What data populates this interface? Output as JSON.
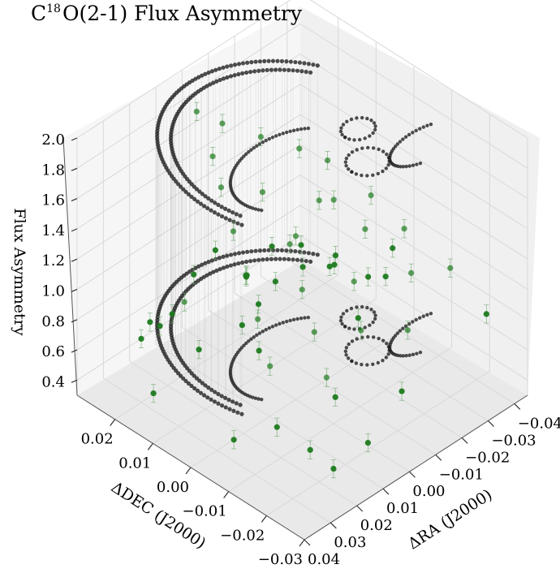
{
  "chart_data": {
    "type": "scatter",
    "projection": "3d",
    "title": {
      "prefix": "C",
      "superscript": "18",
      "suffix": "O(2-1) Flux Asymmetry"
    },
    "xlabel": "ΔRA (J2000)",
    "ylabel": "ΔDEC (J2000)",
    "zlabel": "Flux Asymmetry",
    "xlim": [
      -0.045,
      0.04
    ],
    "ylim": [
      -0.03,
      0.03
    ],
    "zlim": [
      0.3,
      2.0
    ],
    "x_ticks": [
      -0.04,
      -0.03,
      -0.02,
      -0.01,
      0.0,
      0.01,
      0.02,
      0.03,
      0.04
    ],
    "x_tick_labels": [
      "−0.04",
      "−0.03",
      "−0.02",
      "−0.01",
      "0.00",
      "0.01",
      "0.02",
      "0.03",
      "0.04"
    ],
    "y_ticks": [
      0.02,
      0.01,
      0.0,
      -0.01,
      -0.02,
      -0.03
    ],
    "y_tick_labels": [
      "0.02",
      "0.01",
      "0.00",
      "−0.01",
      "−0.02",
      "−0.03"
    ],
    "z_ticks": [
      0.4,
      0.6,
      0.8,
      1.0,
      1.2,
      1.4,
      1.6,
      1.8,
      2.0
    ],
    "z_tick_labels": [
      "0.4",
      "0.6",
      "0.8",
      "1.0",
      "1.2",
      "1.4",
      "1.6",
      "1.8",
      "2.0"
    ],
    "grid": true,
    "colors": {
      "points": "#1e7a1e",
      "contours": "#222222",
      "errorbars": "#6aa56a"
    },
    "contour_levels_z": [
      0.7,
      1.95
    ],
    "points": [
      {
        "x": 0.006,
        "y": 0.022,
        "z": 1.92
      },
      {
        "x": 0.002,
        "y": 0.018,
        "z": 1.86
      },
      {
        "x": -0.004,
        "y": 0.012,
        "z": 1.8
      },
      {
        "x": 0.01,
        "y": 0.015,
        "z": 1.78
      },
      {
        "x": -0.01,
        "y": 0.006,
        "z": 1.75
      },
      {
        "x": 0.014,
        "y": 0.01,
        "z": 1.7
      },
      {
        "x": -0.015,
        "y": 0.002,
        "z": 1.68
      },
      {
        "x": 0.004,
        "y": 0.006,
        "z": 1.62
      },
      {
        "x": -0.006,
        "y": -0.002,
        "z": 1.58
      },
      {
        "x": 0.018,
        "y": 0.004,
        "z": 1.55
      },
      {
        "x": -0.02,
        "y": -0.006,
        "z": 1.52
      },
      {
        "x": 0.008,
        "y": -0.004,
        "z": 1.48
      },
      {
        "x": -0.012,
        "y": -0.01,
        "z": 1.45
      },
      {
        "x": 0.022,
        "y": -0.002,
        "z": 1.4
      },
      {
        "x": 0.0,
        "y": 0.0,
        "z": 1.38
      },
      {
        "x": -0.024,
        "y": -0.012,
        "z": 1.35
      },
      {
        "x": 0.012,
        "y": -0.01,
        "z": 1.32
      },
      {
        "x": -0.002,
        "y": -0.014,
        "z": 1.28
      },
      {
        "x": 0.026,
        "y": -0.008,
        "z": 1.25
      },
      {
        "x": -0.018,
        "y": -0.018,
        "z": 1.22
      },
      {
        "x": 0.016,
        "y": -0.016,
        "z": 1.18
      },
      {
        "x": -0.03,
        "y": -0.02,
        "z": 1.15
      },
      {
        "x": 0.004,
        "y": -0.02,
        "z": 1.12
      },
      {
        "x": 0.03,
        "y": -0.014,
        "z": 1.08
      },
      {
        "x": -0.008,
        "y": -0.024,
        "z": 1.05
      },
      {
        "x": 0.02,
        "y": -0.022,
        "z": 1.02
      },
      {
        "x": 0.028,
        "y": 0.01,
        "z": 1.1
      },
      {
        "x": -0.026,
        "y": 0.008,
        "z": 1.2
      },
      {
        "x": 0.034,
        "y": 0.002,
        "z": 0.98
      },
      {
        "x": -0.034,
        "y": -0.002,
        "z": 0.95
      },
      {
        "x": 0.01,
        "y": 0.02,
        "z": 0.92
      },
      {
        "x": -0.014,
        "y": 0.016,
        "z": 0.9
      },
      {
        "x": 0.024,
        "y": 0.016,
        "z": 0.88
      },
      {
        "x": -0.004,
        "y": 0.024,
        "z": 0.86
      },
      {
        "x": 0.036,
        "y": -0.02,
        "z": 0.84
      },
      {
        "x": -0.038,
        "y": -0.024,
        "z": 0.82
      },
      {
        "x": 0.0,
        "y": -0.028,
        "z": 0.8
      },
      {
        "x": 0.014,
        "y": 0.0,
        "z": 0.78
      },
      {
        "x": -0.02,
        "y": 0.012,
        "z": 0.76
      },
      {
        "x": 0.032,
        "y": -0.026,
        "z": 0.74
      },
      {
        "x": -0.028,
        "y": 0.018,
        "z": 0.72
      },
      {
        "x": 0.006,
        "y": 0.01,
        "z": 0.7
      },
      {
        "x": -0.01,
        "y": 0.02,
        "z": 0.68
      },
      {
        "x": 0.02,
        "y": 0.022,
        "z": 0.66
      },
      {
        "x": -0.032,
        "y": 0.012,
        "z": 0.64
      },
      {
        "x": 0.038,
        "y": -0.01,
        "z": 0.62
      },
      {
        "x": -0.04,
        "y": 0.004,
        "z": 0.6
      },
      {
        "x": 0.026,
        "y": -0.028,
        "z": 0.58
      },
      {
        "x": -0.016,
        "y": 0.024,
        "z": 0.56
      },
      {
        "x": 0.01,
        "y": -0.026,
        "z": 0.54
      },
      {
        "x": -0.036,
        "y": 0.016,
        "z": 0.52
      },
      {
        "x": 0.034,
        "y": 0.014,
        "z": 0.5
      },
      {
        "x": -0.042,
        "y": 0.01,
        "z": 0.48
      },
      {
        "x": -0.024,
        "y": 0.022,
        "z": 0.46
      },
      {
        "x": -0.044,
        "y": 0.02,
        "z": 0.44
      },
      {
        "x": 0.018,
        "y": 0.026,
        "z": 0.6
      },
      {
        "x": -0.006,
        "y": 0.014,
        "z": 0.64
      },
      {
        "x": 0.008,
        "y": -0.016,
        "z": 0.66
      },
      {
        "x": -0.018,
        "y": -0.004,
        "z": 0.7
      },
      {
        "x": 0.03,
        "y": 0.02,
        "z": 0.72
      }
    ]
  }
}
